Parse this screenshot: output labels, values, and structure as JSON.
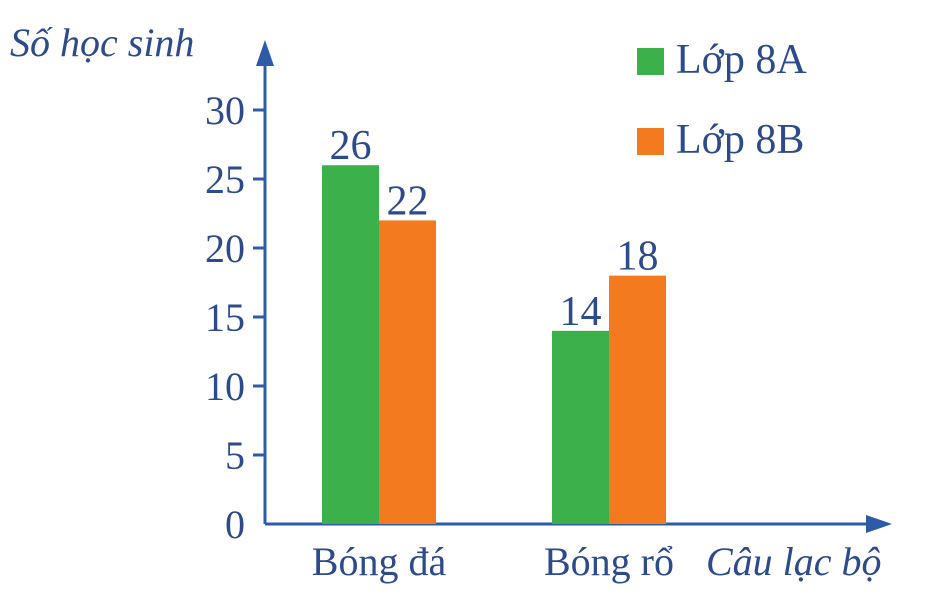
{
  "chart_data": {
    "type": "bar",
    "title": "",
    "xlabel": "Câu lạc bộ",
    "ylabel": "Số học sinh",
    "categories": [
      "Bóng đá",
      "Bóng rổ"
    ],
    "series": [
      {
        "name": "Lớp 8A",
        "color": "#3cb04a",
        "values": [
          26,
          14
        ]
      },
      {
        "name": "Lớp 8B",
        "color": "#f47a1f",
        "values": [
          22,
          18
        ]
      }
    ],
    "yticks": [
      "0",
      "5",
      "10",
      "15",
      "20",
      "25",
      "30"
    ],
    "ylim": [
      0,
      30
    ],
    "grid": false,
    "legend_position": "top-right",
    "data_labels": true
  }
}
